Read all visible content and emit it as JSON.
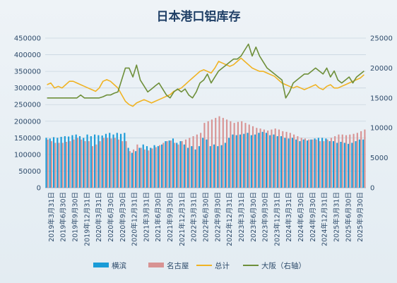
{
  "chart_data": {
    "type": "bar+line",
    "title": "日本港口铝库存",
    "legend_position": "bottom",
    "y_left": {
      "min": 0,
      "max": 450000,
      "step": 50000
    },
    "y_right": {
      "min": 0,
      "max": 25000,
      "step": 5000
    },
    "x_tick_labels": [
      "2019年3月31日",
      "2019年6月30日",
      "2019年9月30日",
      "2019年12月31日",
      "2020年3月31日",
      "2020年6月30日",
      "2020年9月30日",
      "2020年12月31日",
      "2021年3月31日",
      "2021年6月30日",
      "2021年9月30日",
      "2021年12月31日",
      "2022年3月31日",
      "2022年6月30日",
      "2022年9月30日",
      "2022年12月31日",
      "2023年3月31日",
      "2023年6月30日",
      "2023年9月30日",
      "2023年12月31日",
      "2024年3月31日",
      "2024年6月30日",
      "2024年9月30日",
      "2024年12月31日",
      "2025年3月31日",
      "2025年6月30日",
      "2025年9月30日"
    ],
    "series": [
      {
        "name": "横滨",
        "type": "bar",
        "axis": "left",
        "color": "#1a9bd7",
        "values": [
          150000,
          148000,
          152000,
          150000,
          153000,
          155000,
          154000,
          158000,
          160000,
          155000,
          150000,
          160000,
          155000,
          160000,
          158000,
          157000,
          162000,
          165000,
          160000,
          165000,
          162000,
          165000,
          120000,
          105000,
          110000,
          120000,
          130000,
          125000,
          120000,
          128000,
          125000,
          130000,
          140000,
          142000,
          148000,
          135000,
          140000,
          130000,
          120000,
          125000,
          115000,
          125000,
          150000,
          145000,
          125000,
          130000,
          125000,
          128000,
          135000,
          150000,
          160000,
          158000,
          160000,
          162000,
          165000,
          158000,
          160000,
          165000,
          168000,
          165000,
          158000,
          160000,
          155000,
          155000,
          150000,
          148000,
          150000,
          145000,
          140000,
          145000,
          142000,
          145000,
          148000,
          150000,
          150000,
          148000,
          140000,
          140000,
          135000,
          138000,
          135000,
          132000,
          135000,
          140000,
          145000,
          145000
        ]
      },
      {
        "name": "名古屋",
        "type": "bar",
        "axis": "left",
        "color": "#d89393",
        "values": [
          145000,
          140000,
          135000,
          135000,
          135000,
          138000,
          140000,
          145000,
          150000,
          145000,
          140000,
          140000,
          125000,
          130000,
          140000,
          150000,
          150000,
          148000,
          150000,
          145000,
          140000,
          140000,
          110000,
          115000,
          130000,
          120000,
          115000,
          112000,
          118000,
          122000,
          128000,
          135000,
          140000,
          142000,
          135000,
          130000,
          140000,
          145000,
          150000,
          155000,
          160000,
          165000,
          195000,
          200000,
          205000,
          210000,
          215000,
          210000,
          205000,
          200000,
          195000,
          198000,
          200000,
          195000,
          190000,
          185000,
          180000,
          178000,
          175000,
          172000,
          175000,
          178000,
          175000,
          170000,
          168000,
          165000,
          160000,
          155000,
          150000,
          148000,
          145000,
          145000,
          145000,
          140000,
          140000,
          145000,
          150000,
          155000,
          160000,
          160000,
          158000,
          160000,
          162000,
          165000,
          170000,
          175000
        ]
      },
      {
        "name": "总计",
        "type": "line",
        "axis": "left",
        "color": "#f0b323",
        "values": [
          310000,
          315000,
          300000,
          305000,
          300000,
          310000,
          320000,
          320000,
          315000,
          310000,
          305000,
          300000,
          295000,
          290000,
          300000,
          320000,
          325000,
          320000,
          310000,
          300000,
          280000,
          260000,
          250000,
          245000,
          255000,
          260000,
          265000,
          260000,
          255000,
          260000,
          265000,
          270000,
          275000,
          280000,
          290000,
          295000,
          300000,
          310000,
          320000,
          330000,
          340000,
          350000,
          355000,
          350000,
          345000,
          360000,
          380000,
          375000,
          370000,
          365000,
          370000,
          380000,
          390000,
          380000,
          370000,
          360000,
          355000,
          350000,
          350000,
          345000,
          340000,
          335000,
          325000,
          315000,
          310000,
          305000,
          300000,
          305000,
          300000,
          295000,
          300000,
          305000,
          310000,
          300000,
          295000,
          305000,
          310000,
          300000,
          300000,
          305000,
          310000,
          315000,
          320000,
          325000,
          330000,
          340000
        ]
      },
      {
        "name": "大阪（右轴）",
        "type": "line",
        "axis": "right",
        "color": "#6e8f3a",
        "values": [
          15000,
          15000,
          15000,
          15000,
          15000,
          15000,
          15000,
          15000,
          15000,
          15500,
          15000,
          15000,
          15000,
          15000,
          15000,
          15200,
          15500,
          15500,
          15800,
          16000,
          18000,
          20000,
          20000,
          18500,
          20500,
          18000,
          17000,
          16000,
          16500,
          17000,
          17500,
          16500,
          15500,
          15000,
          16000,
          16500,
          16000,
          16500,
          15500,
          15000,
          16000,
          17500,
          18000,
          19000,
          17500,
          18500,
          19500,
          20000,
          20500,
          21000,
          21500,
          21500,
          22000,
          23000,
          24000,
          22000,
          23500,
          22000,
          21000,
          20000,
          19500,
          19000,
          18500,
          18000,
          15000,
          16000,
          17500,
          18000,
          18500,
          19000,
          19000,
          19500,
          20000,
          19500,
          19000,
          20000,
          18500,
          19500,
          18000,
          17500,
          18000,
          18500,
          17500,
          18500,
          19000,
          19500
        ]
      }
    ]
  }
}
